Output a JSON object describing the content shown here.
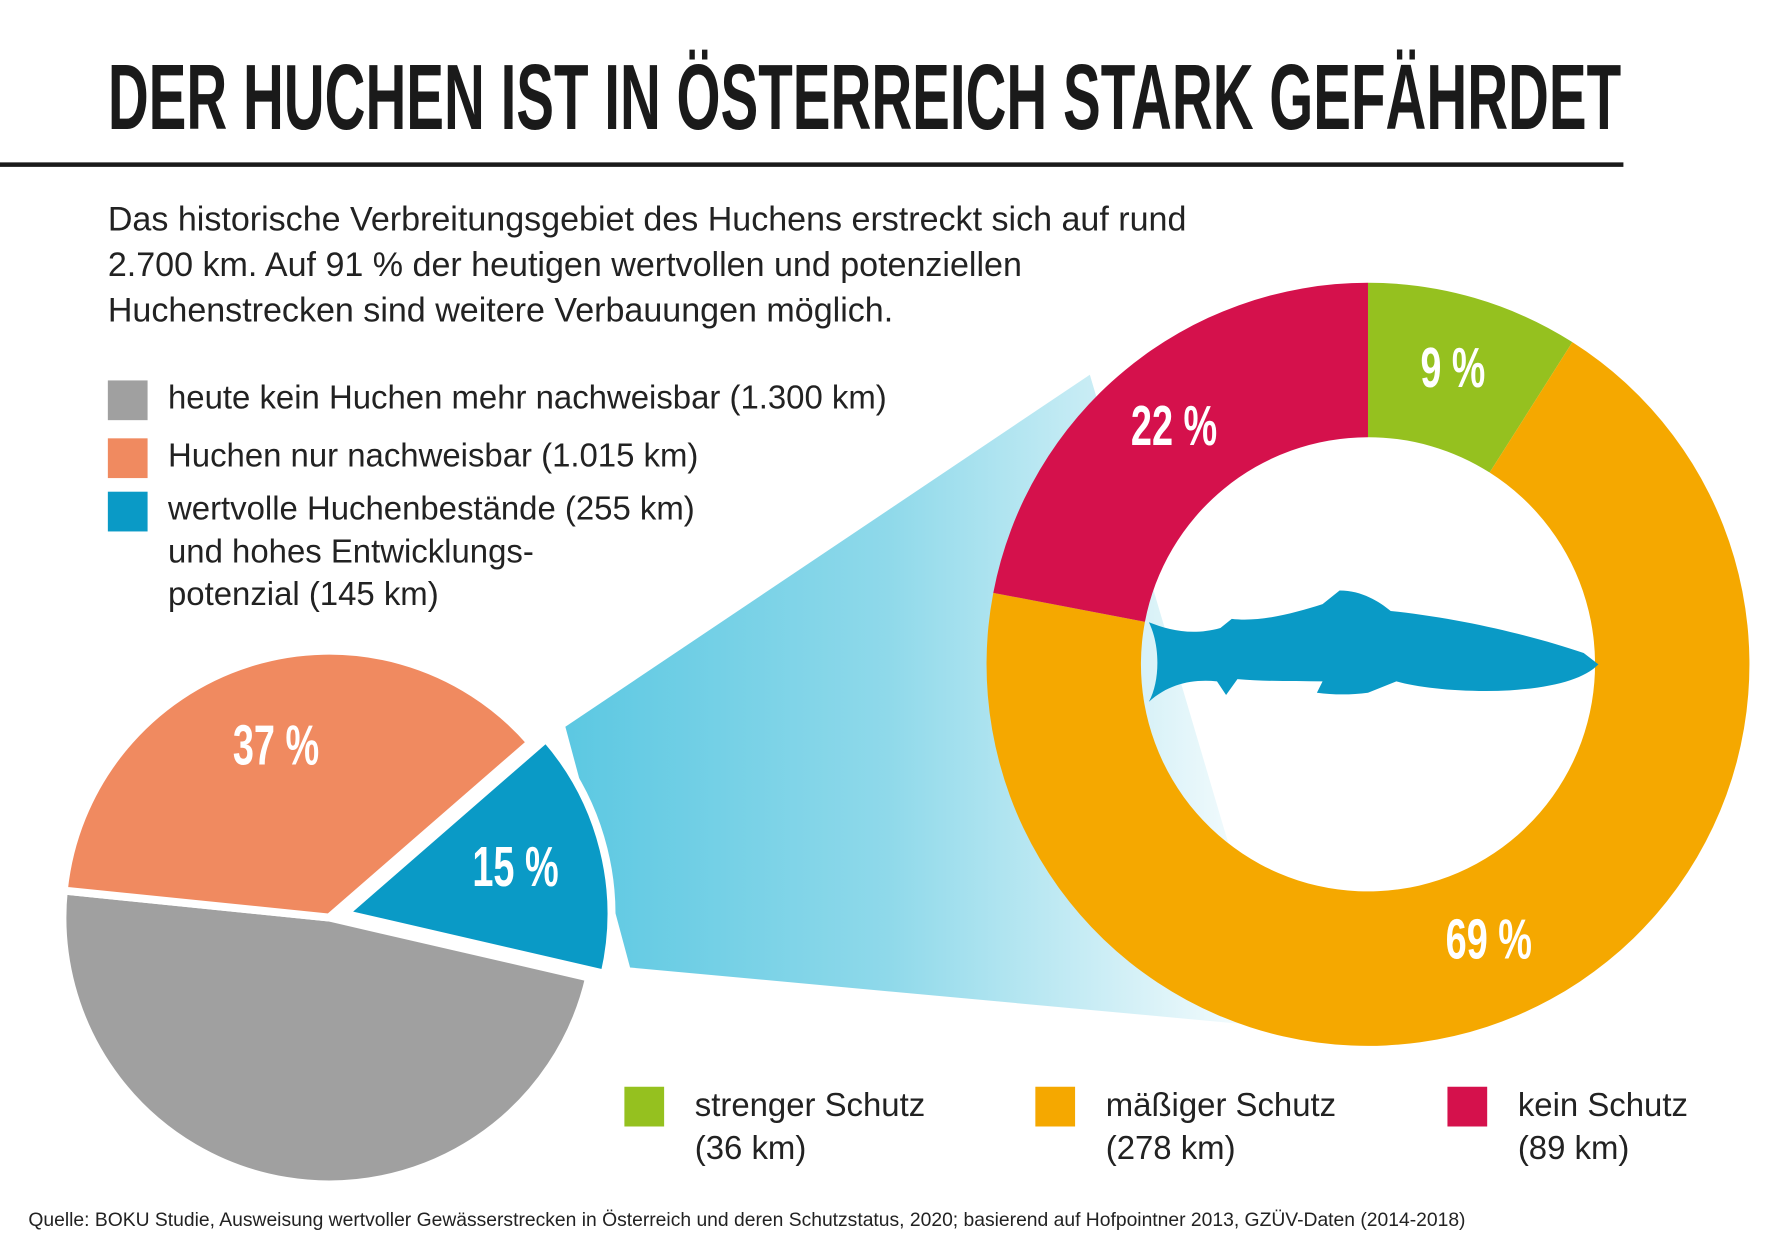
{
  "title": "DER HUCHEN IST IN ÖSTERREICH STARK GEFÄHRDET",
  "intro": [
    "Das historische Verbreitungsgebiet des Huchens erstreckt sich auf rund",
    "2.700 km. Auf 91 % der heutigen wertvollen und potenziellen",
    "Huchenstrecken sind weitere Verbauungen möglich."
  ],
  "source": "Quelle: BOKU Studie, Ausweisung wertvoller Gewässerstrecken in Österreich und deren Schutzstatus, 2020; basierend auf Hofpointner 2013, GZÜV-Daten (2014-2018)",
  "chart_data": [
    {
      "type": "pie",
      "categories": [
        [
          "heute kein Huchen mehr nachweisbar (1.300 km)"
        ],
        [
          "Huchen nur nachweisbar (1.015 km)"
        ],
        [
          "wertvolle Huchenbestände (255 km)",
          "und hohes Entwicklungs-",
          "potenzial (145 km)"
        ]
      ],
      "values": [
        48,
        37,
        15
      ],
      "value_labels": [
        null,
        "37 %",
        "15 %"
      ],
      "colors": [
        "#a0a0a0",
        "#f08a60",
        "#0a9ac6"
      ]
    },
    {
      "type": "donut",
      "categories": [
        [
          "strenger Schutz",
          "(36 km)"
        ],
        [
          "mäßiger Schutz",
          "(278 km)"
        ],
        [
          "kein Schutz",
          "(89 km)"
        ]
      ],
      "values": [
        9,
        69,
        22
      ],
      "value_labels": [
        "9 %",
        "69 %",
        "22 %"
      ],
      "colors": [
        "#95c11f",
        "#f5a800",
        "#d5114c"
      ]
    }
  ]
}
